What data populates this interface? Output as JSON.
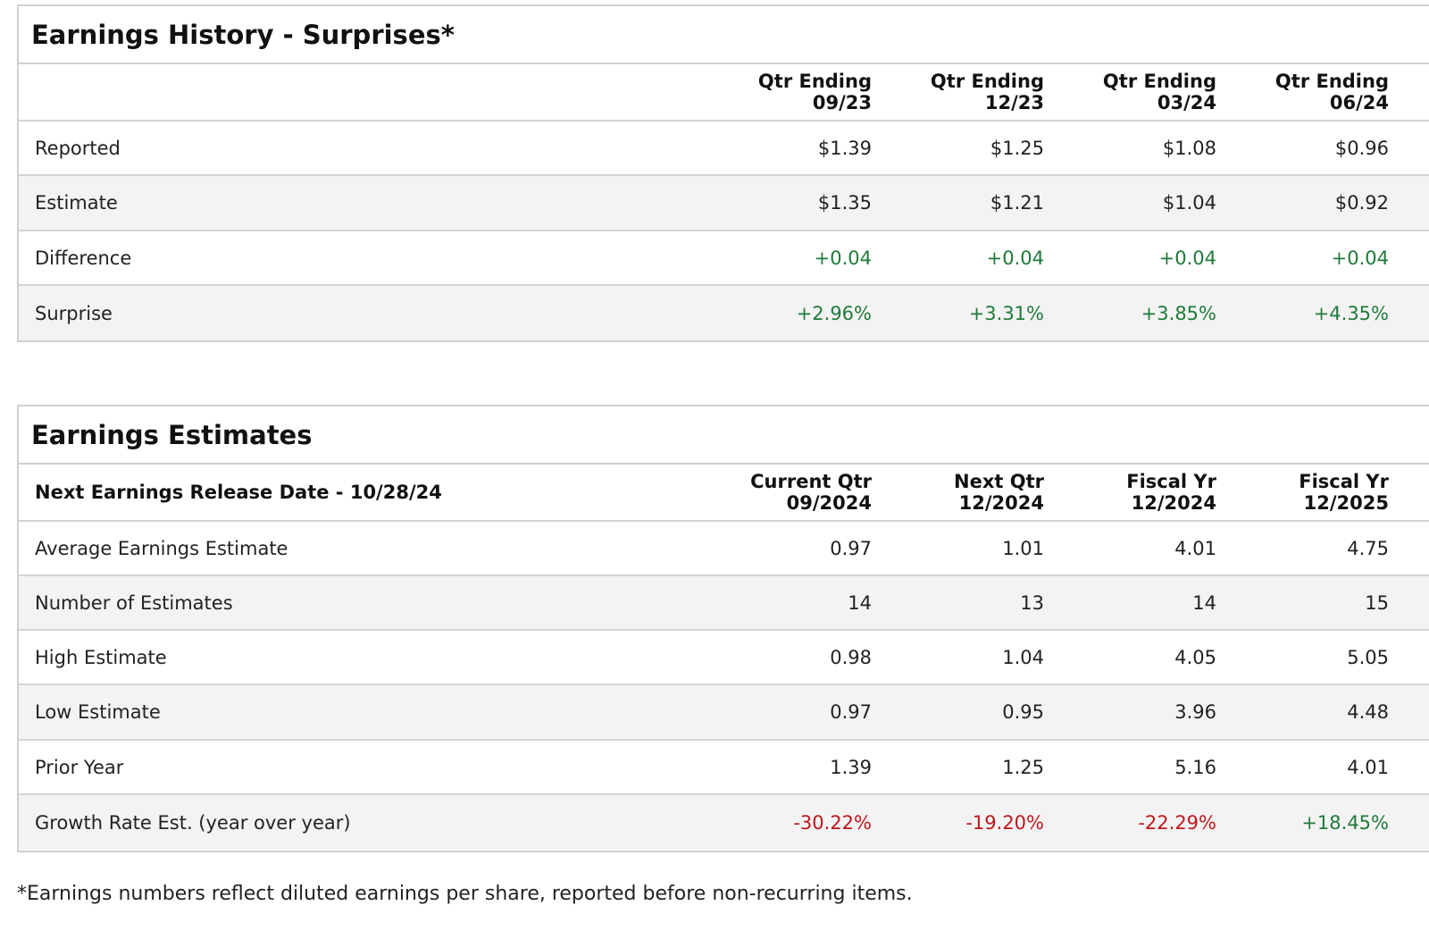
{
  "history": {
    "title": "Earnings History - Surprises*",
    "columns": [
      {
        "line1": "Qtr Ending",
        "line2": "09/23"
      },
      {
        "line1": "Qtr Ending",
        "line2": "12/23"
      },
      {
        "line1": "Qtr Ending",
        "line2": "03/24"
      },
      {
        "line1": "Qtr Ending",
        "line2": "06/24"
      }
    ],
    "rows": [
      {
        "label": "Reported",
        "values": [
          "$1.39",
          "$1.25",
          "$1.08",
          "$0.96"
        ]
      },
      {
        "label": "Estimate",
        "values": [
          "$1.35",
          "$1.21",
          "$1.04",
          "$0.92"
        ]
      },
      {
        "label": "Difference",
        "values": [
          "+0.04",
          "+0.04",
          "+0.04",
          "+0.04"
        ]
      },
      {
        "label": "Surprise",
        "values": [
          "+2.96%",
          "+3.31%",
          "+3.85%",
          "+4.35%"
        ]
      }
    ]
  },
  "estimates": {
    "title": "Earnings Estimates",
    "header_label": "Next Earnings Release Date - 10/28/24",
    "columns": [
      {
        "line1": "Current Qtr",
        "line2": "09/2024"
      },
      {
        "line1": "Next Qtr",
        "line2": "12/2024"
      },
      {
        "line1": "Fiscal Yr",
        "line2": "12/2024"
      },
      {
        "line1": "Fiscal Yr",
        "line2": "12/2025"
      }
    ],
    "rows": [
      {
        "label": "Average Earnings Estimate",
        "values": [
          "0.97",
          "1.01",
          "4.01",
          "4.75"
        ]
      },
      {
        "label": "Number of Estimates",
        "values": [
          "14",
          "13",
          "14",
          "15"
        ]
      },
      {
        "label": "High Estimate",
        "values": [
          "0.98",
          "1.04",
          "4.05",
          "5.05"
        ]
      },
      {
        "label": "Low Estimate",
        "values": [
          "0.97",
          "0.95",
          "3.96",
          "4.48"
        ]
      },
      {
        "label": "Prior Year",
        "values": [
          "1.39",
          "1.25",
          "5.16",
          "4.01"
        ]
      },
      {
        "label": "Growth Rate Est. (year over year)",
        "values": [
          "-30.22%",
          "-19.20%",
          "-22.29%",
          "+18.45%"
        ]
      }
    ]
  },
  "footnote": "*Earnings numbers reflect diluted earnings per share, reported before non-recurring items.",
  "colors": {
    "positive": "#1f7a3a",
    "negative": "#c0161c",
    "row_alt": "#f3f3f3",
    "border": "#d0d0d0"
  }
}
